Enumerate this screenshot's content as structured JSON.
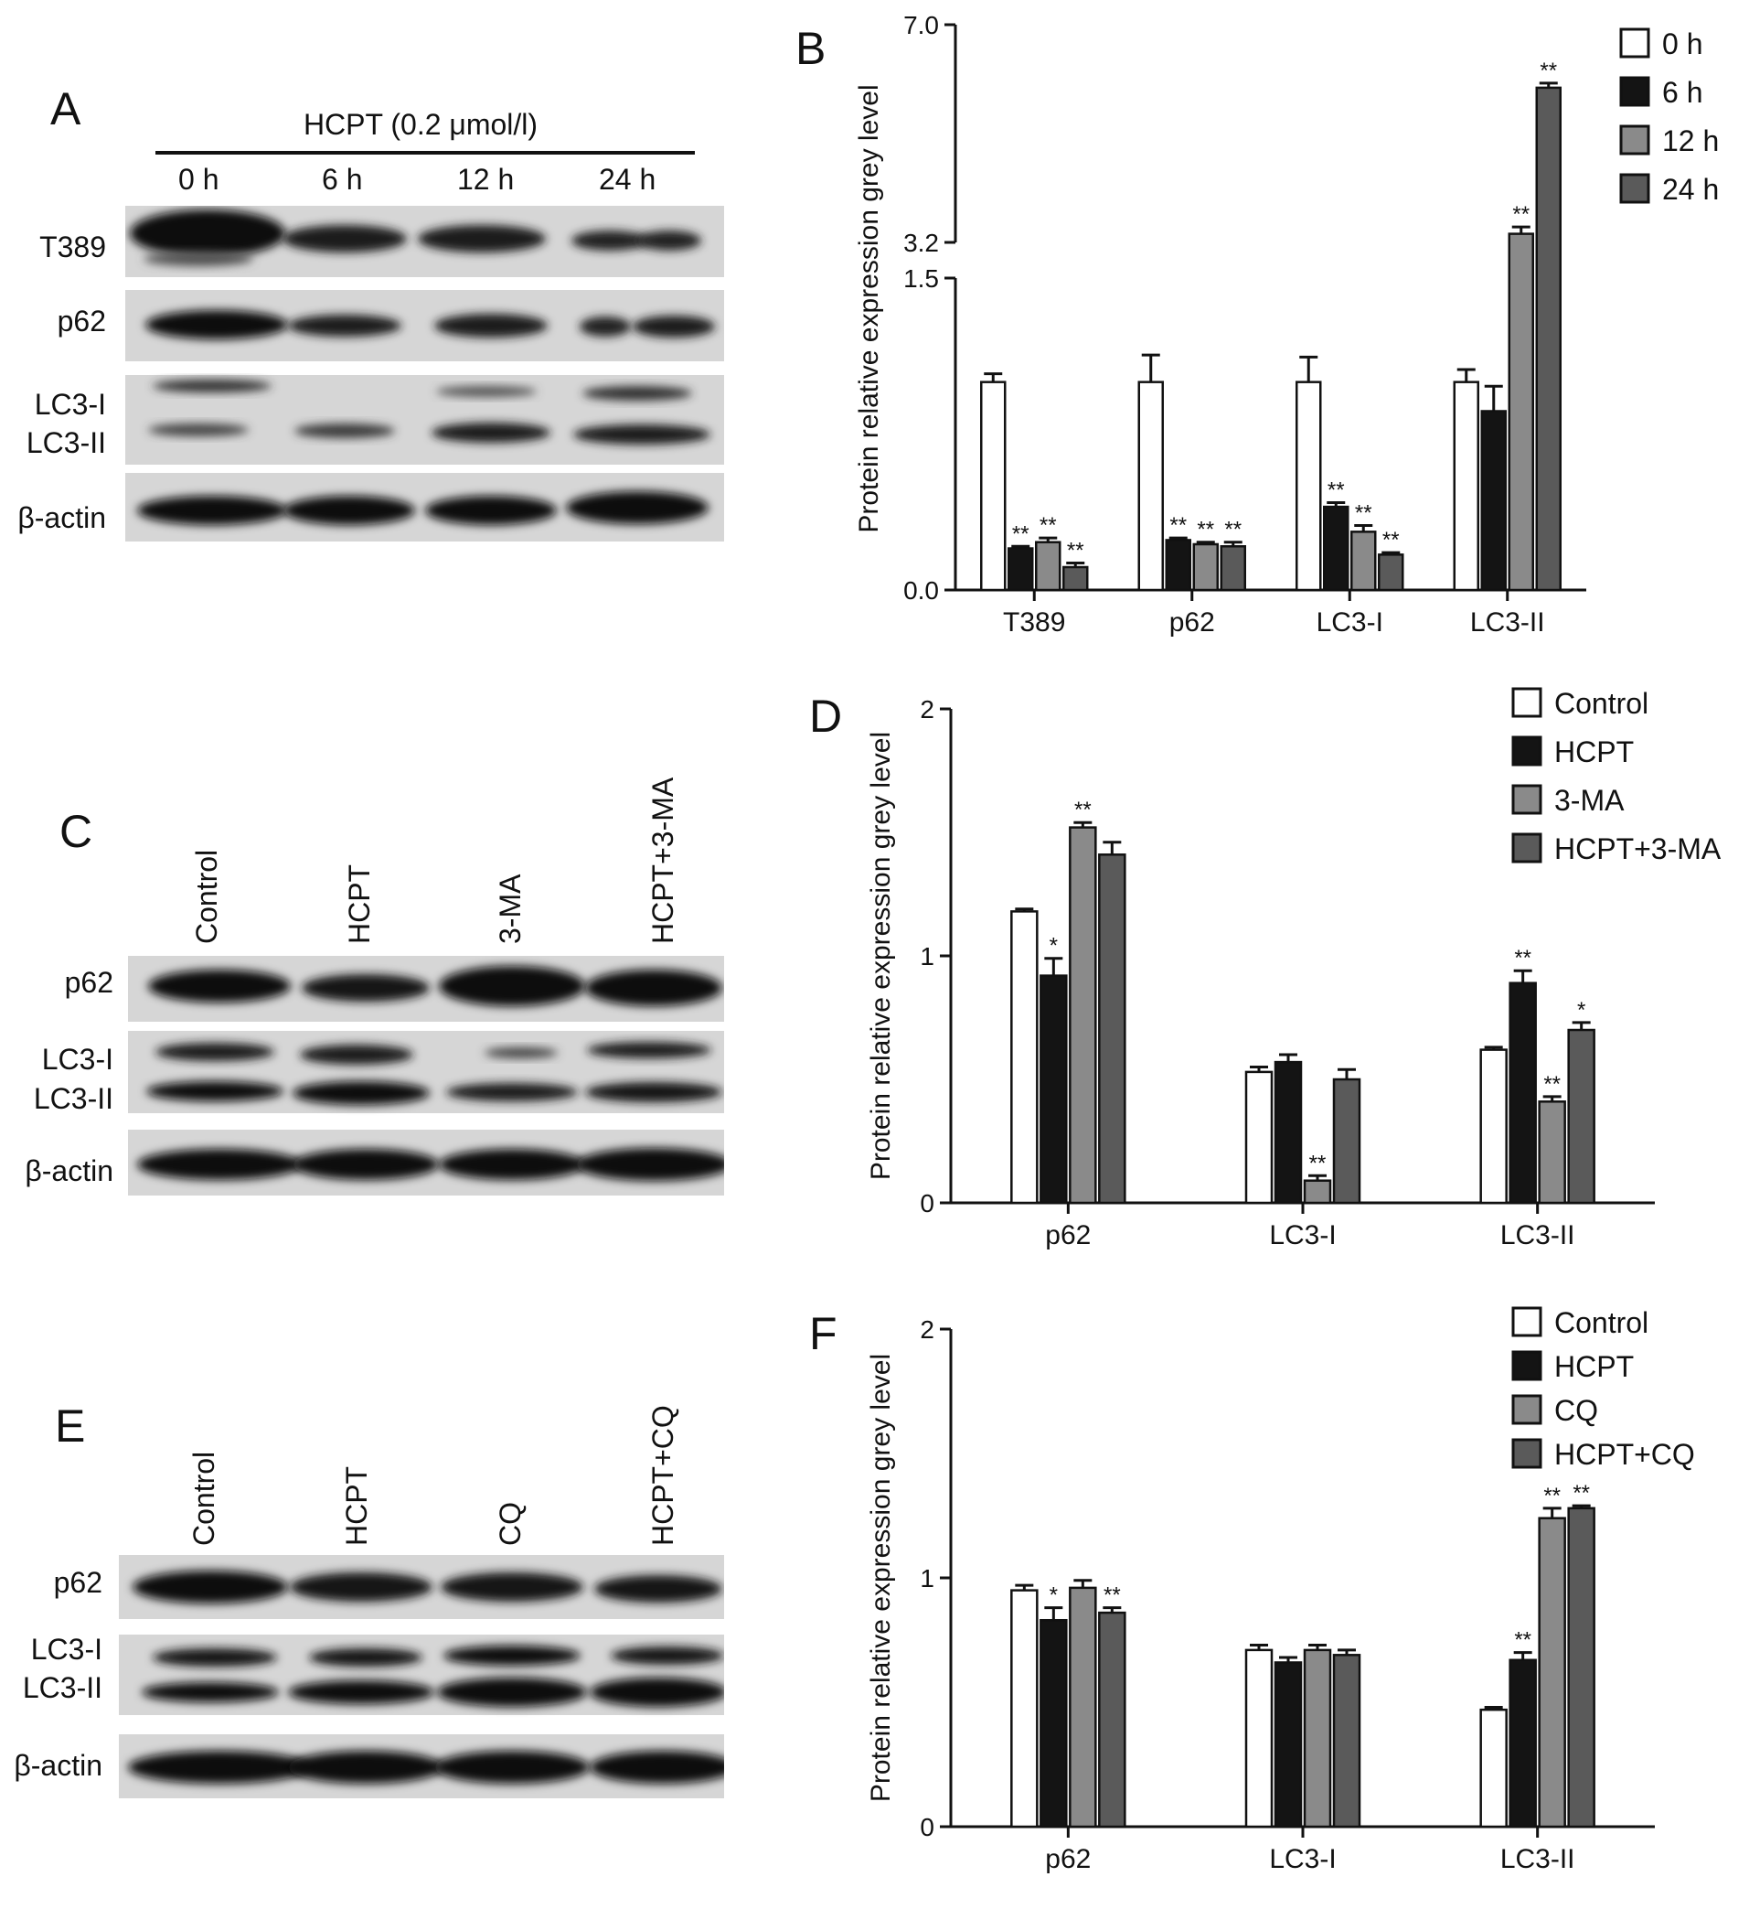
{
  "panels": {
    "A": {
      "letter": "A",
      "treatment": "HCPT (0.2 μmol/l)",
      "lanes": [
        "0 h",
        "6 h",
        "12 h",
        "24 h"
      ],
      "rows": [
        "T389",
        "p62",
        "LC3-I",
        "LC3-II",
        "β-actin"
      ]
    },
    "C": {
      "letter": "C",
      "lanes": [
        "Control",
        "HCPT",
        "3-MA",
        "HCPT+3-MA"
      ],
      "rows": [
        "p62",
        "LC3-I",
        "LC3-II",
        "β-actin"
      ]
    },
    "E": {
      "letter": "E",
      "lanes": [
        "Control",
        "HCPT",
        "CQ",
        "HCPT+CQ"
      ],
      "rows": [
        "p62",
        "LC3-I",
        "LC3-II",
        "β-actin"
      ]
    }
  },
  "colors": {
    "control": "#ffffff",
    "group1": "#141414",
    "group2": "#8a8a8a",
    "group3": "#5a5a5a"
  },
  "chart_data": [
    {
      "id": "B",
      "letter": "B",
      "type": "bar",
      "ylabel": "Protein relative expression grey level",
      "broken_axis": true,
      "lower_range": [
        0,
        1.5
      ],
      "upper_range": [
        3.2,
        7.0
      ],
      "ytick_labels": [
        "0.0",
        "1.5",
        "3.2",
        "7.0"
      ],
      "categories": [
        "T389",
        "p62",
        "LC3-I",
        "LC3-II"
      ],
      "legend_position": "top-right",
      "series": [
        {
          "name": "0 h",
          "values": [
            1.0,
            1.0,
            1.0,
            1.0
          ],
          "errors": [
            0.04,
            0.13,
            0.12,
            0.06
          ],
          "stars": [
            "",
            "",
            "",
            ""
          ]
        },
        {
          "name": "6 h",
          "values": [
            0.2,
            0.24,
            0.4,
            0.86
          ],
          "errors": [
            0.01,
            0.01,
            0.02,
            0.12
          ],
          "stars": [
            "**",
            "**",
            "**",
            ""
          ]
        },
        {
          "name": "12 h",
          "values": [
            0.23,
            0.22,
            0.28,
            3.35
          ],
          "errors": [
            0.02,
            0.01,
            0.03,
            0.12
          ],
          "stars": [
            "**",
            "**",
            "**",
            "**"
          ]
        },
        {
          "name": "24 h",
          "values": [
            0.11,
            0.21,
            0.17,
            5.9
          ],
          "errors": [
            0.02,
            0.02,
            0.01,
            0.08
          ],
          "stars": [
            "**",
            "**",
            "**",
            "**"
          ]
        }
      ]
    },
    {
      "id": "D",
      "letter": "D",
      "type": "bar",
      "ylabel": "Protein relative expression grey level",
      "ylim": [
        0,
        2
      ],
      "ytick_labels": [
        "0",
        "1",
        "2"
      ],
      "categories": [
        "p62",
        "LC3-I",
        "LC3-II"
      ],
      "legend_position": "top-right",
      "series": [
        {
          "name": "Control",
          "values": [
            1.18,
            0.53,
            0.62
          ],
          "errors": [
            0.01,
            0.02,
            0.01
          ],
          "stars": [
            "",
            "",
            ""
          ]
        },
        {
          "name": "HCPT",
          "values": [
            0.92,
            0.57,
            0.89
          ],
          "errors": [
            0.07,
            0.03,
            0.05
          ],
          "stars": [
            "*",
            "",
            "**"
          ]
        },
        {
          "name": "3-MA",
          "values": [
            1.52,
            0.09,
            0.41
          ],
          "errors": [
            0.02,
            0.02,
            0.02
          ],
          "stars": [
            "**",
            "**",
            "**"
          ]
        },
        {
          "name": "HCPT+3-MA",
          "values": [
            1.41,
            0.5,
            0.7
          ],
          "errors": [
            0.05,
            0.04,
            0.03
          ],
          "stars": [
            "",
            "",
            "*"
          ]
        }
      ]
    },
    {
      "id": "F",
      "letter": "F",
      "type": "bar",
      "ylabel": "Protein relative expression grey level",
      "ylim": [
        0,
        2
      ],
      "ytick_labels": [
        "0",
        "1",
        "2"
      ],
      "categories": [
        "p62",
        "LC3-I",
        "LC3-II"
      ],
      "legend_position": "top-right",
      "series": [
        {
          "name": "Control",
          "values": [
            0.95,
            0.71,
            0.47
          ],
          "errors": [
            0.02,
            0.02,
            0.01
          ],
          "stars": [
            "",
            "",
            ""
          ]
        },
        {
          "name": "HCPT",
          "values": [
            0.83,
            0.66,
            0.67
          ],
          "errors": [
            0.05,
            0.02,
            0.03
          ],
          "stars": [
            "*",
            "",
            "**"
          ]
        },
        {
          "name": "CQ",
          "values": [
            0.96,
            0.71,
            1.24
          ],
          "errors": [
            0.03,
            0.02,
            0.04
          ],
          "stars": [
            "",
            "",
            "**"
          ]
        },
        {
          "name": "HCPT+CQ",
          "values": [
            0.86,
            0.69,
            1.28
          ],
          "errors": [
            0.02,
            0.02,
            0.01
          ],
          "stars": [
            "**",
            "",
            "**"
          ]
        }
      ]
    }
  ]
}
